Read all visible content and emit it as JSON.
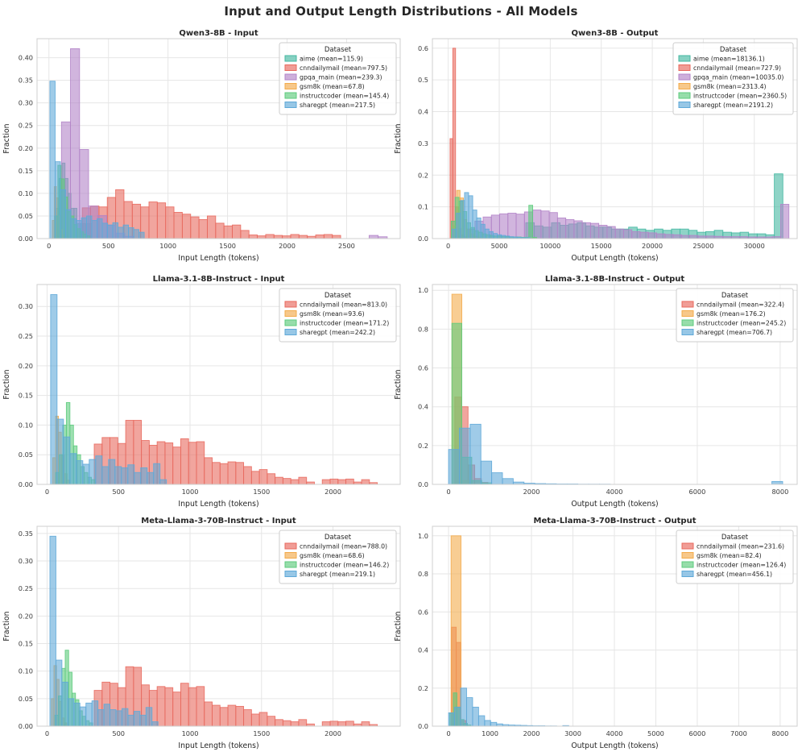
{
  "title": "Input and Output Length Distributions - All Models",
  "legend_title": "Dataset",
  "colors": {
    "aime": "#45b8a2",
    "cnndailymail": "#e8695e",
    "gpqa_main": "#b384c8",
    "gsm8k": "#f3ab4b",
    "instructcoder": "#5dcb7d",
    "sharegpt": "#5fa9d8",
    "grid": "#e6e6e6",
    "spine": "#cfcfcf",
    "text": "#262626",
    "tick_text": "#3b3b3b"
  },
  "chart_data": [
    {
      "type": "bar",
      "id": "qwen3-8b-input",
      "title": "Qwen3-8B - Input",
      "xlabel": "Input Length (tokens)",
      "ylabel": "Fraction",
      "xlim": [
        -100,
        2950
      ],
      "ylim": [
        0,
        0.442
      ],
      "xticks": [
        0,
        500,
        1000,
        1500,
        2000,
        2500
      ],
      "yticks": [
        0.0,
        0.05,
        0.1,
        0.15,
        0.2,
        0.25,
        0.3,
        0.35,
        0.4
      ],
      "ydec": 2,
      "legend": [
        {
          "dataset": "aime",
          "label": "aime (mean=115.9)"
        },
        {
          "dataset": "cnndailymail",
          "label": "cnndailymail (mean=797.5)"
        },
        {
          "dataset": "gpqa_main",
          "label": "gpqa_main (mean=239.3)"
        },
        {
          "dataset": "gsm8k",
          "label": "gsm8k (mean=67.8)"
        },
        {
          "dataset": "instructcoder",
          "label": "instructcoder (mean=145.4)"
        },
        {
          "dataset": "sharegpt",
          "label": "sharegpt (mean=217.5)"
        }
      ],
      "series": [
        {
          "dataset": "aime",
          "x0": 60,
          "bw": 25,
          "h": [
            0.067,
            0.133,
            0.167,
            0.133,
            0.1,
            0.067,
            0.067,
            0.033,
            0.033,
            0.033,
            0.033,
            0.033
          ]
        },
        {
          "dataset": "cnndailymail",
          "x0": 280,
          "bw": 70,
          "h": [
            0.068,
            0.072,
            0.07,
            0.091,
            0.108,
            0.082,
            0.076,
            0.07,
            0.081,
            0.079,
            0.07,
            0.058,
            0.054,
            0.048,
            0.042,
            0.05,
            0.034,
            0.028,
            0.03,
            0.018,
            0.008,
            0.006,
            0.009,
            0.007,
            0.006,
            0.009,
            0.007,
            0.005,
            0.008,
            0.009,
            0.007
          ]
        },
        {
          "dataset": "gpqa_main",
          "x0": 105,
          "bw": 76,
          "h": [
            0.258,
            0.42,
            0.197,
            0.072,
            0.051,
            0.03,
            0.012,
            0.005,
            0,
            0,
            0,
            0,
            0,
            0,
            0,
            0,
            0,
            0,
            0,
            0,
            0,
            0,
            0,
            0,
            0,
            0,
            0,
            0,
            0,
            0,
            0,
            0,
            0,
            0,
            0.007,
            0.004
          ]
        },
        {
          "dataset": "gsm8k",
          "x0": 28,
          "bw": 17,
          "h": [
            0.04,
            0.115,
            0.09,
            0.05,
            0.02,
            0.008
          ]
        },
        {
          "dataset": "instructcoder",
          "x0": 48,
          "bw": 27,
          "h": [
            0.05,
            0.162,
            0.132,
            0.092,
            0.06,
            0.05,
            0.031,
            0.022,
            0.015,
            0.01,
            0.006
          ]
        },
        {
          "dataset": "sharegpt",
          "x0": 8,
          "bw": 44,
          "h": [
            0.348,
            0.17,
            0.108,
            0.064,
            0.044,
            0.04,
            0.046,
            0.05,
            0.04,
            0.044,
            0.034,
            0.03,
            0.035,
            0.025,
            0.03,
            0.024,
            0.02,
            0.014
          ]
        }
      ]
    },
    {
      "type": "bar",
      "id": "qwen3-8b-output",
      "title": "Qwen3-8B - Output",
      "xlabel": "Output Length (tokens)",
      "ylabel": "Fraction",
      "xlim": [
        -1550,
        34200
      ],
      "ylim": [
        0,
        0.63
      ],
      "xticks": [
        0,
        5000,
        10000,
        15000,
        20000,
        25000,
        30000
      ],
      "yticks": [
        0.0,
        0.1,
        0.2,
        0.3,
        0.4,
        0.5,
        0.6
      ],
      "ydec": 1,
      "legend": [
        {
          "dataset": "aime",
          "label": "aime (mean=18136.1)"
        },
        {
          "dataset": "cnndailymail",
          "label": "cnndailymail (mean=727.9)"
        },
        {
          "dataset": "gpqa_main",
          "label": "gpqa_main (mean=10035.0)"
        },
        {
          "dataset": "gsm8k",
          "label": "gsm8k (mean=2313.4)"
        },
        {
          "dataset": "instructcoder",
          "label": "instructcoder (mean=2360.5)"
        },
        {
          "dataset": "sharegpt",
          "label": "sharegpt (mean=2191.2)"
        }
      ],
      "series": [
        {
          "dataset": "aime",
          "x0": 7600,
          "bw": 840,
          "h": [
            0.05,
            0.04,
            0.036,
            0.05,
            0.042,
            0.046,
            0.05,
            0.04,
            0.036,
            0.036,
            0.03,
            0.03,
            0.036,
            0.03,
            0.026,
            0.03,
            0.026,
            0.03,
            0.03,
            0.026,
            0.02,
            0.022,
            0.026,
            0.02,
            0.018,
            0.02,
            0.015,
            0.015,
            0.012,
            0.204
          ]
        },
        {
          "dataset": "cnndailymail",
          "x0": 180,
          "bw": 270,
          "h": [
            0.315,
            0.6,
            0.1,
            0.032,
            0.012,
            0.005
          ]
        },
        {
          "dataset": "gpqa_main",
          "x0": 1800,
          "bw": 810,
          "h": [
            0.03,
            0.055,
            0.068,
            0.074,
            0.078,
            0.08,
            0.077,
            0.084,
            0.09,
            0.087,
            0.082,
            0.065,
            0.06,
            0.056,
            0.05,
            0.048,
            0.042,
            0.038,
            0.03,
            0.028,
            0.022,
            0.02,
            0.018,
            0.015,
            0.013,
            0.012,
            0.01,
            0.01,
            0.008,
            0.008,
            0.007,
            0.006,
            0.006,
            0.006,
            0.005,
            0.005,
            0.005,
            0.006,
            0.108
          ]
        },
        {
          "dataset": "gsm8k",
          "x0": 500,
          "bw": 330,
          "h": [
            0.04,
            0.152,
            0.128,
            0.06,
            0.03,
            0.015,
            0.007,
            0.004
          ]
        },
        {
          "dataset": "instructcoder",
          "x0": 300,
          "bw": 380,
          "h": [
            0.055,
            0.13,
            0.118,
            0.085,
            0.05,
            0.035,
            0.025,
            0.02,
            0.015,
            0.012,
            0.01,
            0.008,
            0.008,
            0.006,
            0.006,
            0.005,
            0.005,
            0.005,
            0.004,
            0.004,
            0.105,
            0.004
          ]
        },
        {
          "dataset": "sharegpt",
          "x0": 400,
          "bw": 400,
          "h": [
            0.03,
            0.08,
            0.12,
            0.145,
            0.135,
            0.09,
            0.065,
            0.045,
            0.03,
            0.022,
            0.016,
            0.012,
            0.01,
            0.008,
            0.006,
            0.005,
            0.004,
            0.003,
            0.003
          ]
        }
      ]
    },
    {
      "type": "bar",
      "id": "llama-3-1-8b-instruct-input",
      "title": "Llama-3.1-8B-Instruct - Input",
      "xlabel": "Input Length (tokens)",
      "ylabel": "Fraction",
      "xlim": [
        -70,
        2470
      ],
      "ylim": [
        0,
        0.337
      ],
      "xticks": [
        0,
        500,
        1000,
        1500,
        2000
      ],
      "yticks": [
        0.0,
        0.05,
        0.1,
        0.15,
        0.2,
        0.25,
        0.3
      ],
      "ydec": 2,
      "legend": [
        {
          "dataset": "cnndailymail",
          "label": "cnndailymail (mean=813.0)"
        },
        {
          "dataset": "gsm8k",
          "label": "gsm8k (mean=93.6)"
        },
        {
          "dataset": "instructcoder",
          "label": "instructcoder (mean=171.2)"
        },
        {
          "dataset": "sharegpt",
          "label": "sharegpt (mean=242.2)"
        }
      ],
      "series": [
        {
          "dataset": "cnndailymail",
          "x0": 330,
          "bw": 55,
          "h": [
            0.068,
            0.079,
            0.079,
            0.069,
            0.108,
            0.108,
            0.074,
            0.066,
            0.072,
            0.07,
            0.063,
            0.077,
            0.071,
            0.072,
            0.045,
            0.037,
            0.035,
            0.038,
            0.037,
            0.03,
            0.022,
            0.025,
            0.018,
            0.012,
            0.01,
            0.008,
            0.012,
            0.004,
            0,
            0.008,
            0.009,
            0.008,
            0.009,
            0.004,
            0.008,
            0.003
          ]
        },
        {
          "dataset": "gsm8k",
          "x0": 40,
          "bw": 20,
          "h": [
            0.045,
            0.115,
            0.088,
            0.05,
            0.018,
            0.007
          ]
        },
        {
          "dataset": "instructcoder",
          "x0": 60,
          "bw": 25,
          "h": [
            0.02,
            0.05,
            0.1,
            0.138,
            0.1,
            0.065,
            0.05,
            0.03,
            0.02,
            0.012,
            0.008
          ]
        },
        {
          "dataset": "sharegpt",
          "x0": 25,
          "bw": 45,
          "h": [
            0.32,
            0.11,
            0.08,
            0.052,
            0.04,
            0.034,
            0.042,
            0.048,
            0.03,
            0.042,
            0.03,
            0.028,
            0.033,
            0.02,
            0.028,
            0.02,
            0.035,
            0.008
          ]
        }
      ]
    },
    {
      "type": "bar",
      "id": "llama-3-1-8b-instruct-output",
      "title": "Llama-3.1-8B-Instruct - Output",
      "xlabel": "Output Length (tokens)",
      "ylabel": "Fraction",
      "xlim": [
        -390,
        8410
      ],
      "ylim": [
        0,
        1.03
      ],
      "xticks": [
        0,
        2000,
        4000,
        6000,
        8000
      ],
      "yticks": [
        0.0,
        0.2,
        0.4,
        0.6,
        0.8,
        1.0
      ],
      "ydec": 1,
      "legend": [
        {
          "dataset": "cnndailymail",
          "label": "cnndailymail (mean=322.4)"
        },
        {
          "dataset": "gsm8k",
          "label": "gsm8k (mean=176.2)"
        },
        {
          "dataset": "instructcoder",
          "label": "instructcoder (mean=245.2)"
        },
        {
          "dataset": "sharegpt",
          "label": "sharegpt (mean=706.7)"
        }
      ],
      "series": [
        {
          "dataset": "cnndailymail",
          "x0": 150,
          "bw": 160,
          "h": [
            0.45,
            0.4,
            0.1,
            0.03,
            0.01
          ]
        },
        {
          "dataset": "gsm8k",
          "x0": 80,
          "bw": 240,
          "h": [
            0.98,
            0.02
          ]
        },
        {
          "dataset": "instructcoder",
          "x0": 80,
          "bw": 240,
          "h": [
            0.83,
            0.14,
            0.02,
            0.008
          ]
        },
        {
          "dataset": "sharegpt",
          "x0": 0,
          "bw": 260,
          "h": [
            0.18,
            0.29,
            0.31,
            0.12,
            0.06,
            0.03,
            0.012,
            0.006,
            0.004,
            0.003,
            0.002,
            0.002,
            0.001,
            0.001,
            0.001,
            0,
            0,
            0,
            0,
            0,
            0,
            0,
            0,
            0,
            0,
            0,
            0,
            0,
            0,
            0,
            0.015
          ]
        }
      ]
    },
    {
      "type": "bar",
      "id": "meta-llama-3-70b-instruct-input",
      "title": "Meta-Llama-3-70B-Instruct - Input",
      "xlabel": "Input Length (tokens)",
      "ylabel": "Fraction",
      "xlim": [
        -70,
        2470
      ],
      "ylim": [
        0,
        0.363
      ],
      "xticks": [
        0,
        500,
        1000,
        1500,
        2000
      ],
      "yticks": [
        0.0,
        0.05,
        0.1,
        0.15,
        0.2,
        0.25,
        0.3,
        0.35
      ],
      "ydec": 2,
      "legend": [
        {
          "dataset": "cnndailymail",
          "label": "cnndailymail (mean=788.0)"
        },
        {
          "dataset": "gsm8k",
          "label": "gsm8k (mean=68.6)"
        },
        {
          "dataset": "instructcoder",
          "label": "instructcoder (mean=146.2)"
        },
        {
          "dataset": "sharegpt",
          "label": "sharegpt (mean=219.1)"
        }
      ],
      "series": [
        {
          "dataset": "cnndailymail",
          "x0": 330,
          "bw": 55,
          "h": [
            0.065,
            0.08,
            0.078,
            0.07,
            0.108,
            0.107,
            0.075,
            0.065,
            0.072,
            0.07,
            0.062,
            0.078,
            0.07,
            0.072,
            0.044,
            0.038,
            0.034,
            0.038,
            0.036,
            0.03,
            0.022,
            0.025,
            0.018,
            0.012,
            0.01,
            0.008,
            0.012,
            0.004,
            0,
            0.008,
            0.009,
            0.008,
            0.009,
            0.004,
            0.008,
            0.003
          ]
        },
        {
          "dataset": "gsm8k",
          "x0": 30,
          "bw": 18,
          "h": [
            0.05,
            0.11,
            0.085,
            0.045,
            0.015,
            0.006
          ]
        },
        {
          "dataset": "instructcoder",
          "x0": 55,
          "bw": 24,
          "h": [
            0.02,
            0.055,
            0.105,
            0.138,
            0.098,
            0.06,
            0.048,
            0.028,
            0.018,
            0.01,
            0.006
          ]
        },
        {
          "dataset": "sharegpt",
          "x0": 20,
          "bw": 42,
          "h": [
            0.345,
            0.12,
            0.08,
            0.05,
            0.042,
            0.035,
            0.042,
            0.046,
            0.03,
            0.04,
            0.03,
            0.028,
            0.032,
            0.02,
            0.027,
            0.02,
            0.034,
            0.008
          ]
        }
      ]
    },
    {
      "type": "bar",
      "id": "meta-llama-3-70b-instruct-output",
      "title": "Meta-Llama-3-70B-Instruct - Output",
      "xlabel": "Output Length (tokens)",
      "ylabel": "Fraction",
      "xlim": [
        -390,
        8410
      ],
      "ylim": [
        0,
        1.05
      ],
      "xticks": [
        0,
        1000,
        2000,
        3000,
        4000,
        5000,
        6000,
        7000,
        8000
      ],
      "yticks": [
        0.0,
        0.2,
        0.4,
        0.6,
        0.8,
        1.0
      ],
      "ydec": 1,
      "legend": [
        {
          "dataset": "cnndailymail",
          "label": "cnndailymail (mean=231.6)"
        },
        {
          "dataset": "gsm8k",
          "label": "gsm8k (mean=82.4)"
        },
        {
          "dataset": "instructcoder",
          "label": "instructcoder (mean=126.4)"
        },
        {
          "dataset": "sharegpt",
          "label": "sharegpt (mean=456.1)"
        }
      ],
      "series": [
        {
          "dataset": "cnndailymail",
          "x0": 70,
          "bw": 115,
          "h": [
            0.52,
            0.44,
            0.03
          ]
        },
        {
          "dataset": "gsm8k",
          "x0": 60,
          "bw": 240,
          "h": [
            1.0
          ]
        },
        {
          "dataset": "instructcoder",
          "x0": 30,
          "bw": 85,
          "h": [
            0.07,
            0.175,
            0.1,
            0.035,
            0.015,
            0.006
          ]
        },
        {
          "dataset": "sharegpt",
          "x0": 0,
          "bw": 145,
          "h": [
            0.07,
            0.1,
            0.2,
            0.15,
            0.1,
            0.055,
            0.03,
            0.02,
            0.012,
            0.008,
            0.006,
            0.005,
            0.004,
            0.003,
            0.002,
            0.002,
            0.001,
            0.001,
            0,
            0.003
          ]
        }
      ]
    }
  ]
}
